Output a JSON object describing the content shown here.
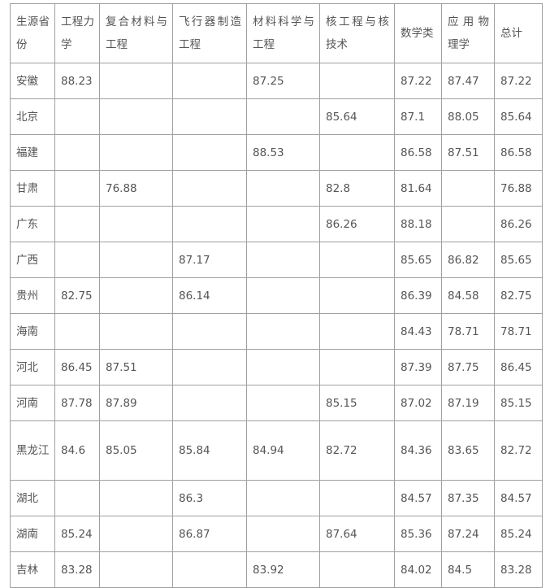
{
  "table": {
    "headers": [
      "生源省份",
      "工程力学",
      "复合材料与工程",
      "飞行器制造工程",
      "材料科学与工程",
      "核工程与核技术",
      "数学类",
      "应用物理学",
      "总计"
    ],
    "rows": [
      [
        "安徽",
        "88.23",
        "",
        "",
        "87.25",
        "",
        "87.22",
        "87.47",
        "87.22"
      ],
      [
        "北京",
        "",
        "",
        "",
        "",
        "85.64",
        "87.1",
        "88.05",
        "85.64"
      ],
      [
        "福建",
        "",
        "",
        "",
        "88.53",
        "",
        "86.58",
        "87.51",
        "86.58"
      ],
      [
        "甘肃",
        "",
        "76.88",
        "",
        "",
        "82.8",
        "81.64",
        "",
        "76.88"
      ],
      [
        "广东",
        "",
        "",
        "",
        "",
        "86.26",
        "88.18",
        "",
        "86.26"
      ],
      [
        "广西",
        "",
        "",
        "87.17",
        "",
        "",
        "85.65",
        "86.82",
        "85.65"
      ],
      [
        "贵州",
        "82.75",
        "",
        "86.14",
        "",
        "",
        "86.39",
        "84.58",
        "82.75"
      ],
      [
        "海南",
        "",
        "",
        "",
        "",
        "",
        "84.43",
        "78.71",
        "78.71"
      ],
      [
        "河北",
        "86.45",
        "87.51",
        "",
        "",
        "",
        "87.39",
        "87.75",
        "86.45"
      ],
      [
        "河南",
        "87.78",
        "87.89",
        "",
        "",
        "85.15",
        "87.02",
        "87.19",
        "85.15"
      ],
      [
        "黑龙江",
        "84.6",
        "85.05",
        "85.84",
        "84.94",
        "82.72",
        "84.36",
        "83.65",
        "82.72"
      ],
      [
        "湖北",
        "",
        "",
        "86.3",
        "",
        "",
        "84.57",
        "87.35",
        "84.57"
      ],
      [
        "湖南",
        "85.24",
        "",
        "86.87",
        "",
        "87.64",
        "85.36",
        "87.24",
        "85.24"
      ],
      [
        "吉林",
        "83.28",
        "",
        "",
        "83.92",
        "",
        "84.02",
        "84.5",
        "83.28"
      ]
    ]
  }
}
